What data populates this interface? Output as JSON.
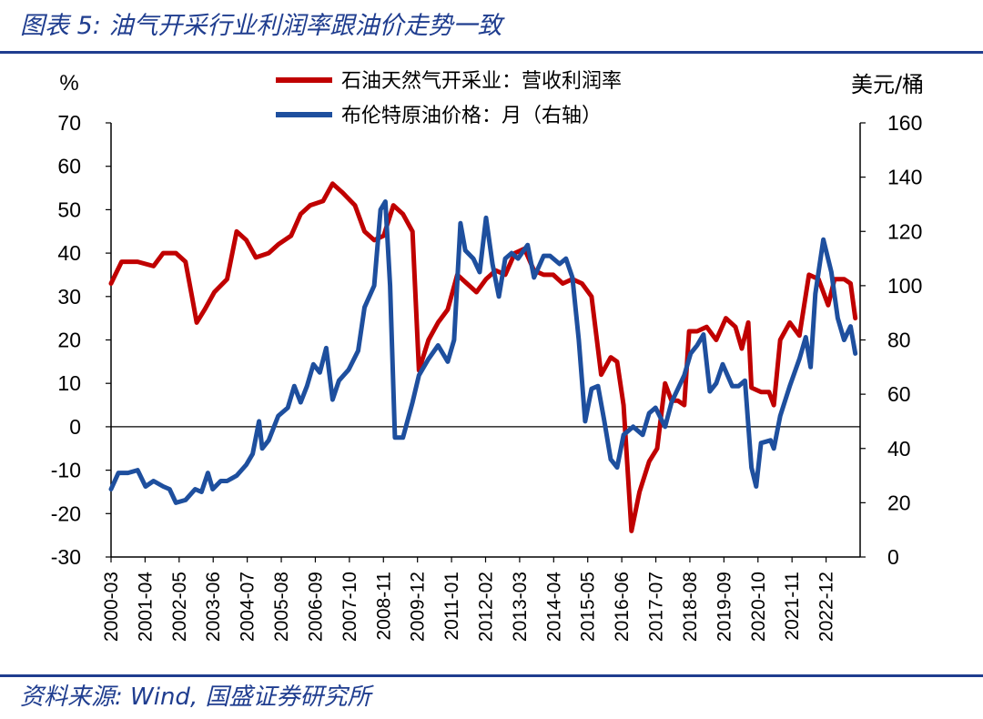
{
  "header": {
    "title": "图表 5:  油气开采行业利润率跟油价走势一致"
  },
  "footer": {
    "source": "资料来源:  Wind,  国盛证券研究所"
  },
  "chart_data": {
    "type": "line",
    "left_unit": "%",
    "right_unit": "美元/桶",
    "y_left": {
      "min": -30,
      "max": 70,
      "ticks": [
        70,
        60,
        50,
        40,
        30,
        20,
        10,
        0,
        -10,
        -20,
        -30
      ]
    },
    "y_right": {
      "min": 0,
      "max": 160,
      "ticks": [
        160,
        140,
        120,
        100,
        80,
        60,
        40,
        20,
        0
      ]
    },
    "x_ticks": [
      "2000-03",
      "2001-04",
      "2002-05",
      "2003-06",
      "2004-07",
      "2005-08",
      "2006-09",
      "2007-10",
      "2008-11",
      "2009-12",
      "2011-01",
      "2012-02",
      "2013-03",
      "2014-04",
      "2015-05",
      "2016-06",
      "2017-07",
      "2018-08",
      "2019-09",
      "2020-10",
      "2021-11",
      "2022-12"
    ],
    "series": [
      {
        "name": "石油天然气开采业：营收利润率",
        "axis": "left",
        "color": "#c00000",
        "points": [
          [
            2000.17,
            33
          ],
          [
            2000.5,
            38
          ],
          [
            2001.0,
            38
          ],
          [
            2001.5,
            37
          ],
          [
            2001.8,
            40
          ],
          [
            2002.2,
            40
          ],
          [
            2002.5,
            38
          ],
          [
            2002.7,
            30
          ],
          [
            2002.85,
            24
          ],
          [
            2003.1,
            27
          ],
          [
            2003.4,
            31
          ],
          [
            2003.8,
            34
          ],
          [
            2004.1,
            45
          ],
          [
            2004.4,
            43
          ],
          [
            2004.7,
            39
          ],
          [
            2005.1,
            40
          ],
          [
            2005.4,
            42
          ],
          [
            2005.8,
            44
          ],
          [
            2006.1,
            49
          ],
          [
            2006.4,
            51
          ],
          [
            2006.8,
            52
          ],
          [
            2007.1,
            56
          ],
          [
            2007.4,
            54
          ],
          [
            2007.8,
            51
          ],
          [
            2008.1,
            45
          ],
          [
            2008.4,
            43
          ],
          [
            2008.7,
            44
          ],
          [
            2009.0,
            51
          ],
          [
            2009.3,
            49
          ],
          [
            2009.6,
            45
          ],
          [
            2009.8,
            13
          ],
          [
            2010.1,
            20
          ],
          [
            2010.4,
            24
          ],
          [
            2010.7,
            27
          ],
          [
            2011.0,
            35
          ],
          [
            2011.3,
            33
          ],
          [
            2011.6,
            31
          ],
          [
            2011.9,
            34
          ],
          [
            2012.2,
            36
          ],
          [
            2012.5,
            35
          ],
          [
            2012.8,
            40
          ],
          [
            2013.1,
            41
          ],
          [
            2013.4,
            36
          ],
          [
            2013.7,
            35
          ],
          [
            2014.0,
            35
          ],
          [
            2014.3,
            33
          ],
          [
            2014.6,
            34
          ],
          [
            2014.9,
            33
          ],
          [
            2015.2,
            30
          ],
          [
            2015.5,
            12
          ],
          [
            2015.8,
            16
          ],
          [
            2016.0,
            15
          ],
          [
            2016.2,
            5
          ],
          [
            2016.45,
            -24
          ],
          [
            2016.7,
            -15
          ],
          [
            2017.0,
            -8
          ],
          [
            2017.25,
            -5
          ],
          [
            2017.5,
            10
          ],
          [
            2017.7,
            6
          ],
          [
            2017.9,
            6
          ],
          [
            2018.1,
            5
          ],
          [
            2018.25,
            22
          ],
          [
            2018.5,
            22
          ],
          [
            2018.8,
            23
          ],
          [
            2019.1,
            20
          ],
          [
            2019.4,
            25
          ],
          [
            2019.7,
            23
          ],
          [
            2019.9,
            18
          ],
          [
            2020.1,
            24
          ],
          [
            2020.2,
            9
          ],
          [
            2020.5,
            8
          ],
          [
            2020.75,
            8
          ],
          [
            2020.9,
            5
          ],
          [
            2021.1,
            20
          ],
          [
            2021.4,
            24
          ],
          [
            2021.7,
            21
          ],
          [
            2022.0,
            35
          ],
          [
            2022.3,
            34
          ],
          [
            2022.6,
            28
          ],
          [
            2022.8,
            34
          ],
          [
            2023.1,
            34
          ],
          [
            2023.3,
            33
          ],
          [
            2023.45,
            25
          ]
        ]
      },
      {
        "name": "布伦特原油价格：月（右轴）",
        "axis": "right",
        "color": "#1e4f9e",
        "points": [
          [
            2000.17,
            25
          ],
          [
            2000.4,
            31
          ],
          [
            2000.7,
            31
          ],
          [
            2001.0,
            32
          ],
          [
            2001.25,
            26
          ],
          [
            2001.5,
            28
          ],
          [
            2001.8,
            26
          ],
          [
            2002.0,
            25
          ],
          [
            2002.2,
            20
          ],
          [
            2002.5,
            21
          ],
          [
            2002.8,
            25
          ],
          [
            2003.0,
            24
          ],
          [
            2003.2,
            31
          ],
          [
            2003.35,
            25
          ],
          [
            2003.6,
            28
          ],
          [
            2003.8,
            28
          ],
          [
            2004.1,
            30
          ],
          [
            2004.4,
            34
          ],
          [
            2004.6,
            38
          ],
          [
            2004.8,
            50
          ],
          [
            2004.9,
            40
          ],
          [
            2005.1,
            43
          ],
          [
            2005.4,
            52
          ],
          [
            2005.7,
            55
          ],
          [
            2005.9,
            63
          ],
          [
            2006.1,
            57
          ],
          [
            2006.3,
            63
          ],
          [
            2006.5,
            71
          ],
          [
            2006.7,
            68
          ],
          [
            2006.9,
            77
          ],
          [
            2007.1,
            58
          ],
          [
            2007.3,
            65
          ],
          [
            2007.6,
            69
          ],
          [
            2007.9,
            76
          ],
          [
            2008.1,
            92
          ],
          [
            2008.4,
            100
          ],
          [
            2008.6,
            128
          ],
          [
            2008.75,
            131
          ],
          [
            2008.9,
            100
          ],
          [
            2009.05,
            44
          ],
          [
            2009.3,
            44
          ],
          [
            2009.6,
            57
          ],
          [
            2009.8,
            67
          ],
          [
            2010.1,
            73
          ],
          [
            2010.4,
            78
          ],
          [
            2010.7,
            72
          ],
          [
            2010.9,
            80
          ],
          [
            2011.1,
            123
          ],
          [
            2011.25,
            113
          ],
          [
            2011.5,
            110
          ],
          [
            2011.7,
            105
          ],
          [
            2011.9,
            125
          ],
          [
            2012.1,
            108
          ],
          [
            2012.3,
            96
          ],
          [
            2012.5,
            110
          ],
          [
            2012.7,
            112
          ],
          [
            2012.9,
            110
          ],
          [
            2013.2,
            115
          ],
          [
            2013.4,
            103
          ],
          [
            2013.7,
            111
          ],
          [
            2013.9,
            111
          ],
          [
            2014.2,
            108
          ],
          [
            2014.4,
            110
          ],
          [
            2014.6,
            103
          ],
          [
            2014.8,
            80
          ],
          [
            2015.0,
            50
          ],
          [
            2015.2,
            62
          ],
          [
            2015.4,
            63
          ],
          [
            2015.6,
            50
          ],
          [
            2015.8,
            36
          ],
          [
            2016.0,
            33
          ],
          [
            2016.2,
            45
          ],
          [
            2016.5,
            48
          ],
          [
            2016.8,
            45
          ],
          [
            2017.0,
            53
          ],
          [
            2017.2,
            55
          ],
          [
            2017.5,
            48
          ],
          [
            2017.7,
            57
          ],
          [
            2017.9,
            62
          ],
          [
            2018.1,
            67
          ],
          [
            2018.3,
            75
          ],
          [
            2018.5,
            78
          ],
          [
            2018.7,
            82
          ],
          [
            2018.9,
            61
          ],
          [
            2019.1,
            64
          ],
          [
            2019.3,
            71
          ],
          [
            2019.6,
            63
          ],
          [
            2019.8,
            63
          ],
          [
            2020.0,
            65
          ],
          [
            2020.2,
            33
          ],
          [
            2020.35,
            26
          ],
          [
            2020.5,
            42
          ],
          [
            2020.8,
            43
          ],
          [
            2020.9,
            40
          ],
          [
            2021.1,
            52
          ],
          [
            2021.4,
            63
          ],
          [
            2021.7,
            73
          ],
          [
            2021.9,
            81
          ],
          [
            2022.05,
            70
          ],
          [
            2022.2,
            97
          ],
          [
            2022.45,
            117
          ],
          [
            2022.7,
            105
          ],
          [
            2022.9,
            88
          ],
          [
            2023.1,
            80
          ],
          [
            2023.3,
            85
          ],
          [
            2023.45,
            75
          ]
        ]
      }
    ]
  }
}
